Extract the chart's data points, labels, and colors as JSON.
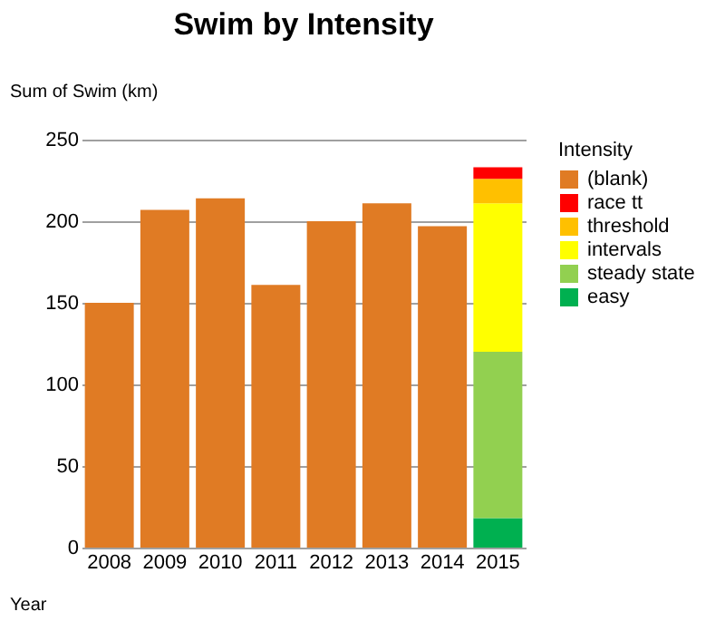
{
  "chart_data": {
    "type": "bar",
    "title": "Swim by Intensity",
    "ylabel": "Sum of Swim (km)",
    "xlabel": "Year",
    "legend_title": "Intensity",
    "categories": [
      "2008",
      "2009",
      "2010",
      "2011",
      "2012",
      "2013",
      "2014",
      "2015"
    ],
    "stacked": true,
    "series": [
      {
        "name": "(blank)",
        "color": "#e07b24",
        "values": [
          150,
          207,
          214,
          161,
          200,
          211,
          197,
          null
        ]
      },
      {
        "name": "easy",
        "color": "#00b050",
        "values": [
          null,
          null,
          null,
          null,
          null,
          null,
          null,
          18
        ]
      },
      {
        "name": "steady state",
        "color": "#92d050",
        "values": [
          null,
          null,
          null,
          null,
          null,
          null,
          null,
          102
        ]
      },
      {
        "name": "intervals",
        "color": "#ffff00",
        "values": [
          null,
          null,
          null,
          null,
          null,
          null,
          null,
          91
        ]
      },
      {
        "name": "threshold",
        "color": "#ffc000",
        "values": [
          null,
          null,
          null,
          null,
          null,
          null,
          null,
          15
        ]
      },
      {
        "name": "race tt",
        "color": "#ff0000",
        "values": [
          null,
          null,
          null,
          null,
          null,
          null,
          null,
          7
        ]
      }
    ],
    "ylim": [
      0,
      250
    ],
    "yticks": [
      0,
      50,
      100,
      150,
      200,
      250
    ],
    "grid": "y",
    "legend": "right"
  }
}
